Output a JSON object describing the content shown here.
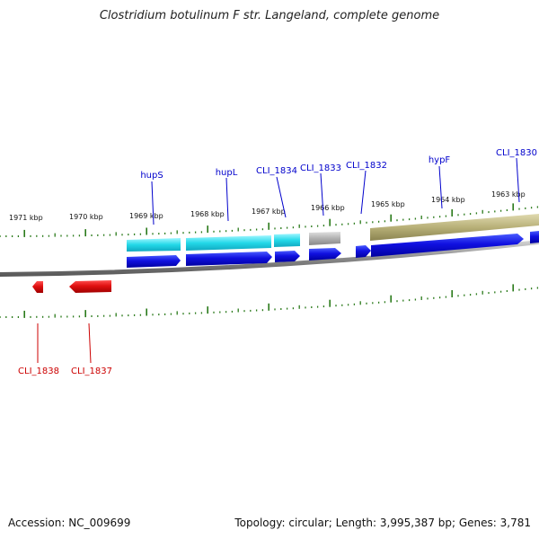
{
  "title": "Clostridium botulinum F str. Langeland, complete genome",
  "footer": {
    "accession": "Accession: NC_009699",
    "topology": "Topology: circular; Length: 3,995,387 bp; Genes: 3,781"
  },
  "scale_labels": [
    "1971 kbp",
    "1970 kbp",
    "1969 kbp",
    "1968 kbp",
    "1967 kbp",
    "1966 kbp",
    "1965 kbp",
    "1964 kbp",
    "1963 kbp"
  ],
  "gene_labels": {
    "forward": [
      "hupS",
      "hupL",
      "CLI_1834",
      "CLI_1833",
      "CLI_1832",
      "hypF",
      "CLI_1830"
    ],
    "reverse": [
      "CLI_1838",
      "CLI_1837"
    ]
  },
  "colors": {
    "forward_cds": "#1010e0",
    "reverse_cds": "#e01010",
    "cyan_feature": "#22d8e8",
    "gray_feature": "#b0b0b0",
    "olive_feature": "#b8b078",
    "forward_label": "#0000cc",
    "reverse_label": "#cc0000",
    "tick": "#2a7a1a",
    "backbone": "#808080"
  }
}
